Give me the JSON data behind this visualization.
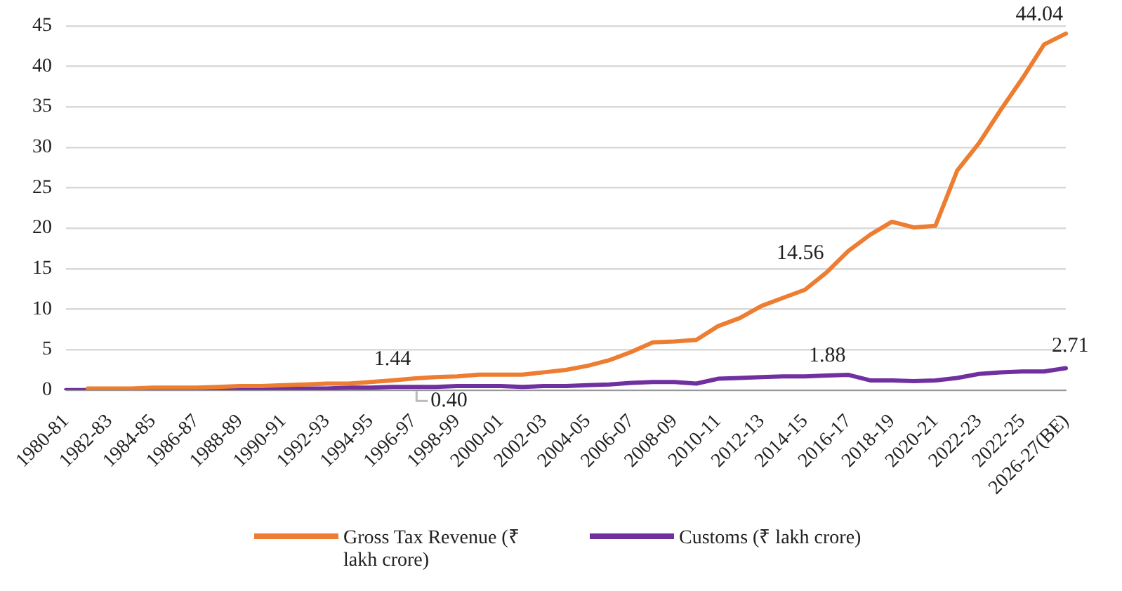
{
  "chart_data": {
    "type": "line",
    "categories": [
      "1980-81",
      null,
      "1982-83",
      null,
      "1984-85",
      null,
      "1986-87",
      null,
      "1988-89",
      null,
      "1990-91",
      null,
      "1992-93",
      null,
      "1994-95",
      null,
      "1996-97",
      null,
      "1998-99",
      null,
      "2000-01",
      null,
      "2002-03",
      null,
      "2004-05",
      null,
      "2006-07",
      null,
      "2008-09",
      null,
      "2010-11",
      null,
      "2012-13",
      null,
      "2014-15",
      null,
      "2016-17",
      null,
      "2018-19",
      null,
      "2020-21",
      null,
      "2022-23",
      null,
      "2022-25",
      null,
      "2026-27(BE)"
    ],
    "series": [
      {
        "name": "Gross Tax Revenue (₹ lakh crore)",
        "color": "#ed7d31",
        "values": [
          null,
          0.2,
          0.2,
          0.2,
          0.3,
          0.3,
          0.3,
          0.4,
          0.5,
          0.5,
          0.6,
          0.7,
          0.8,
          0.8,
          1,
          1.2,
          1.44,
          1.6,
          1.7,
          1.9,
          1.9,
          1.9,
          2.2,
          2.5,
          3,
          3.7,
          4.7,
          5.9,
          6,
          6.2,
          7.9,
          8.9,
          10.4,
          11.4,
          12.4,
          14.56,
          17.2,
          19.2,
          20.8,
          20.1,
          20.3,
          27.1,
          30.5,
          34.6,
          38.5,
          42.7,
          44.04
        ],
        "value_labels": [
          null,
          null,
          null,
          null,
          null,
          null,
          null,
          null,
          null,
          null,
          null,
          null,
          null,
          null,
          null,
          null,
          "1.44",
          null,
          null,
          null,
          null,
          null,
          null,
          null,
          null,
          null,
          null,
          null,
          null,
          null,
          null,
          null,
          null,
          null,
          null,
          "14.56",
          null,
          null,
          null,
          null,
          null,
          null,
          null,
          null,
          null,
          null,
          "44.04"
        ]
      },
      {
        "name": "Customs (₹ lakh crore)",
        "color": "#7030a0",
        "values": [
          0,
          0,
          0.1,
          0.1,
          0.1,
          0.1,
          0.1,
          0.1,
          0.2,
          0.2,
          0.2,
          0.2,
          0.2,
          0.3,
          0.3,
          0.4,
          0.4,
          0.4,
          0.5,
          0.5,
          0.5,
          0.4,
          0.5,
          0.5,
          0.6,
          0.7,
          0.9,
          1,
          1,
          0.8,
          1.4,
          1.5,
          1.6,
          1.7,
          1.7,
          1.8,
          1.88,
          1.2,
          1.2,
          1.1,
          1.2,
          1.5,
          2,
          2.2,
          2.3,
          2.3,
          2.71
        ],
        "value_labels": [
          null,
          null,
          null,
          null,
          null,
          null,
          null,
          null,
          null,
          null,
          null,
          null,
          null,
          null,
          null,
          null,
          "0.40",
          null,
          null,
          null,
          null,
          null,
          null,
          null,
          null,
          null,
          null,
          null,
          null,
          null,
          null,
          null,
          null,
          null,
          null,
          null,
          "1.88",
          null,
          null,
          null,
          null,
          null,
          null,
          null,
          null,
          null,
          "2.71"
        ]
      }
    ],
    "ylim": [
      0,
      45
    ],
    "yticks": [
      0,
      5,
      10,
      15,
      20,
      25,
      30,
      35,
      40,
      45
    ],
    "grid": "y",
    "legend": "bottom",
    "marker": "none",
    "line_style": "solid"
  }
}
